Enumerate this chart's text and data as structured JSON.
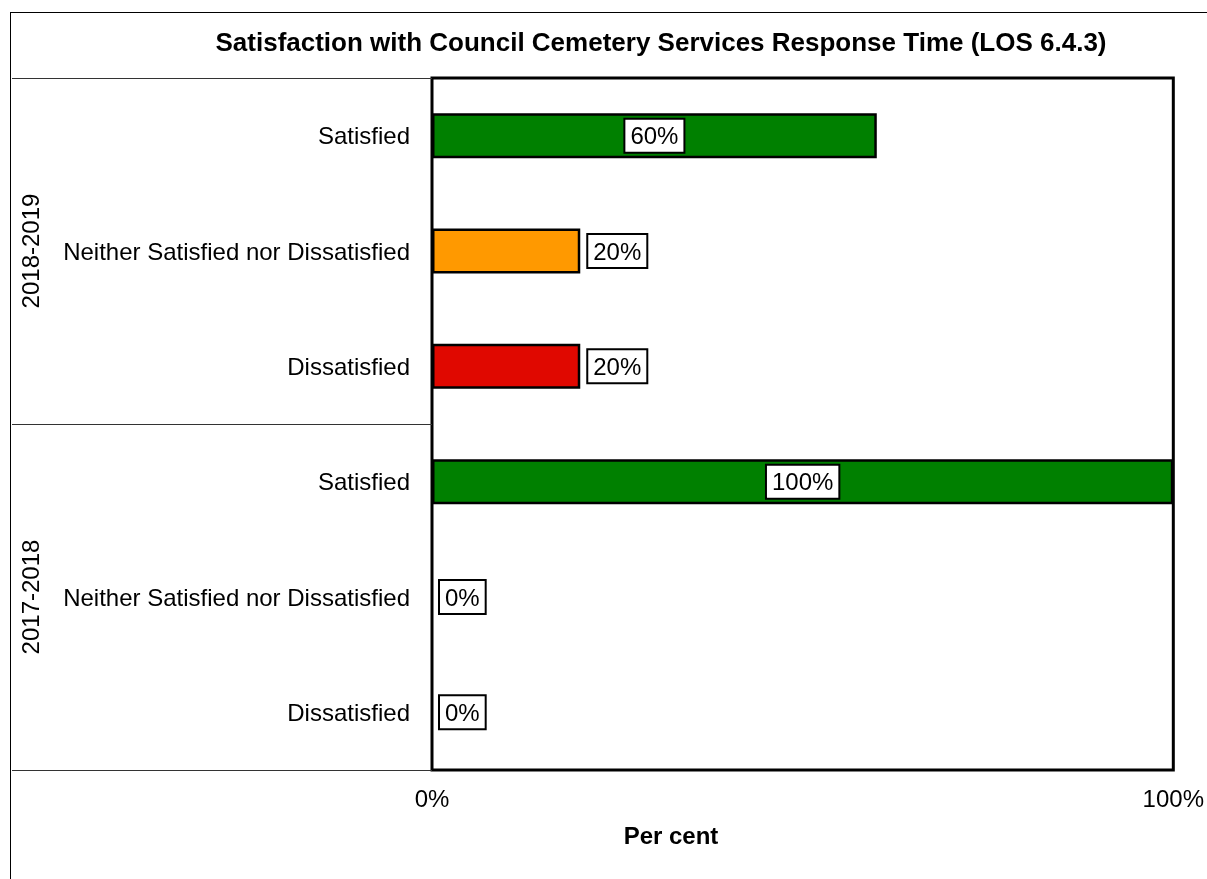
{
  "chart_data": {
    "type": "bar",
    "orientation": "horizontal",
    "title": "Satisfaction with Council Cemetery Services Response Time (LOS 6.4.3)",
    "xlabel": "Per cent",
    "categories": [
      "Satisfied",
      "Neither Satisfied nor Dissatisfied",
      "Dissatisfied",
      "Satisfied",
      "Neither Satisfied nor Dissatisfied",
      "Dissatisfied"
    ],
    "values": [
      60,
      20,
      20,
      100,
      0,
      0
    ],
    "colors": [
      "#008000",
      "#ff9900",
      "#e00800",
      "#008000",
      "#ff9900",
      "#e00800"
    ],
    "value_labels": [
      "60%",
      "20%",
      "20%",
      "100%",
      "0%",
      "0%"
    ],
    "xlim": [
      0,
      100
    ],
    "xticks": [
      {
        "value": 0,
        "label": "0%"
      },
      {
        "value": 100,
        "label": "100%"
      }
    ],
    "annotations": [
      "2018-2019",
      "2017-2018"
    ]
  }
}
